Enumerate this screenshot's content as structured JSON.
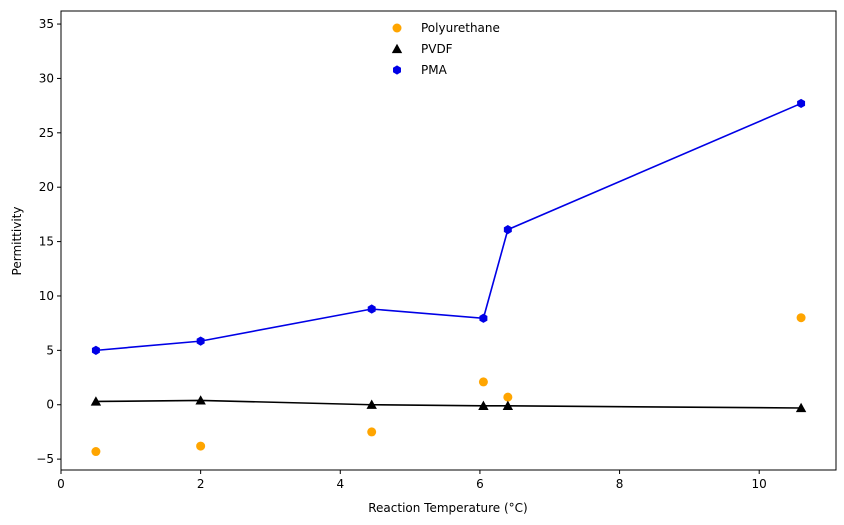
{
  "chart_data": {
    "type": "scatter",
    "title": "",
    "xlabel": "Reaction Temperature (°C)",
    "ylabel": "Permittivity",
    "xlim": [
      0,
      11.1
    ],
    "ylim": [
      -6,
      36.2
    ],
    "xticks": [
      0,
      2,
      4,
      6,
      8,
      10
    ],
    "yticks": [
      -5,
      0,
      5,
      10,
      15,
      20,
      25,
      30,
      35
    ],
    "grid": false,
    "legend_position": "top-center",
    "x": [
      0.5,
      2.0,
      4.45,
      6.05,
      6.4,
      10.6
    ],
    "series": [
      {
        "name": "Polyurethane",
        "marker": "circle",
        "color": "#ffa500",
        "line": false,
        "values": [
          -4.3,
          -3.8,
          -2.5,
          2.1,
          0.7,
          8.0
        ]
      },
      {
        "name": "PVDF",
        "marker": "triangle",
        "color": "#000000",
        "line": true,
        "values": [
          0.3,
          0.4,
          0.0,
          -0.1,
          -0.1,
          -0.3
        ]
      },
      {
        "name": "PMA",
        "marker": "hexagon",
        "color": "#0000e6",
        "line": true,
        "values": [
          5.0,
          5.85,
          8.8,
          7.95,
          16.1,
          27.7
        ]
      }
    ]
  }
}
